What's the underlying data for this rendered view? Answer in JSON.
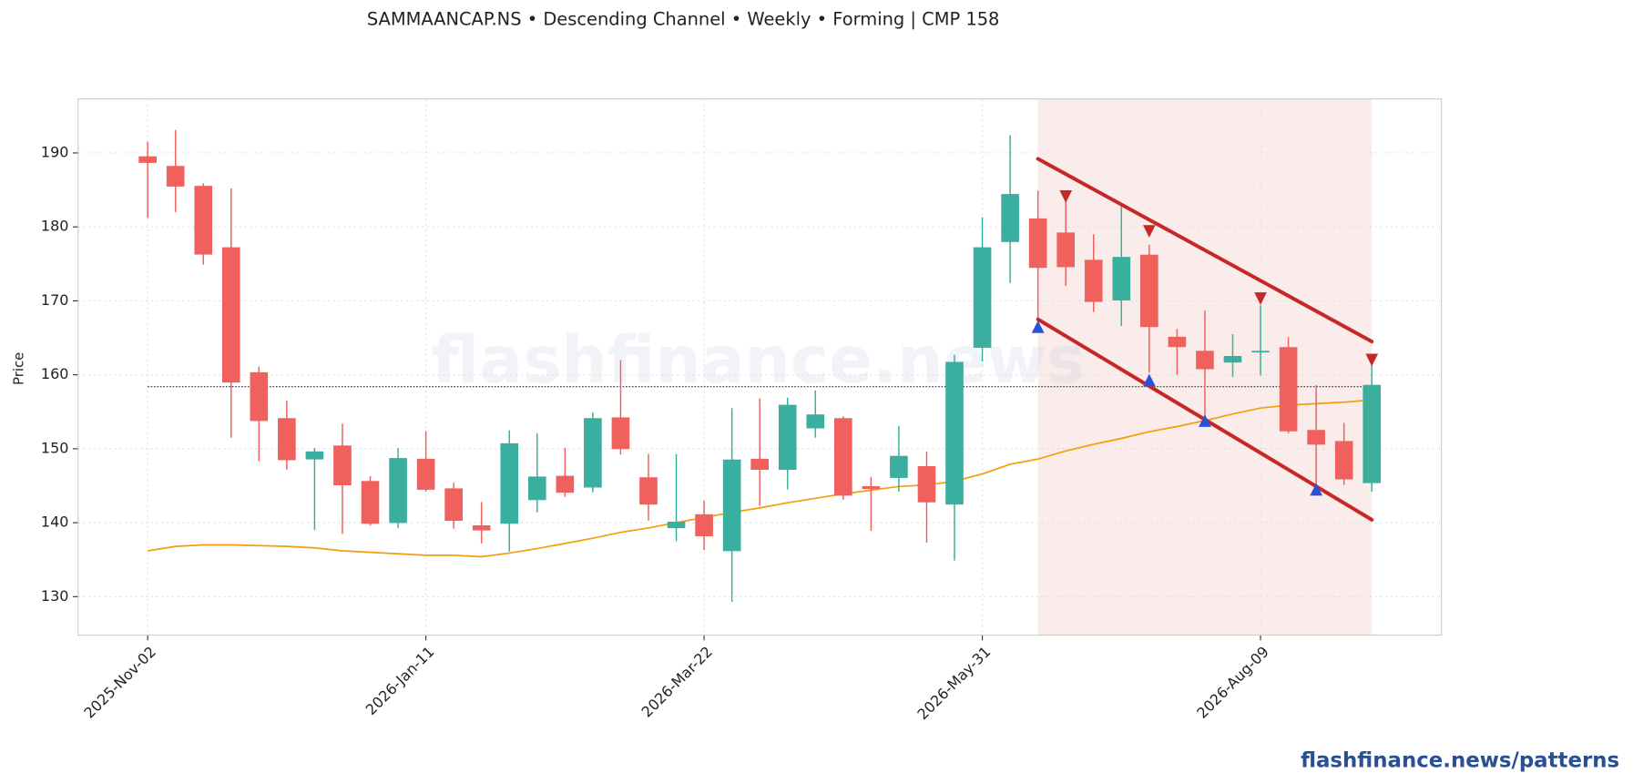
{
  "chart_data": {
    "type": "candlestick",
    "title": "SAMMAANCAP.NS  •  Descending Channel  •  Weekly  •  Forming  |  CMP 158",
    "ylabel": "Price",
    "watermark": "flashfinance.news",
    "footer": "flashfinance.news/patterns",
    "categories": [
      "2025-Nov-02",
      null,
      null,
      null,
      null,
      null,
      null,
      null,
      null,
      null,
      "2026-Jan-11",
      null,
      null,
      null,
      null,
      null,
      null,
      null,
      null,
      null,
      "2026-Mar-22",
      null,
      null,
      null,
      null,
      null,
      null,
      null,
      null,
      null,
      "2026-May-31",
      null,
      null,
      null,
      null,
      null,
      null,
      null,
      null,
      null,
      "2026-Aug-09",
      null,
      null,
      null,
      null
    ],
    "open": [
      189.5,
      188.2,
      185.5,
      177.2,
      160.3,
      154.1,
      148.6,
      150.4,
      145.6,
      140.0,
      148.6,
      144.6,
      139.6,
      139.9,
      143.1,
      146.3,
      144.8,
      154.2,
      146.1,
      139.3,
      141.1,
      136.2,
      148.6,
      147.2,
      152.8,
      154.1,
      144.9,
      146.1,
      147.6,
      142.5,
      163.7,
      178.0,
      181.1,
      179.2,
      175.5,
      170.1,
      176.2,
      165.1,
      163.2,
      161.7,
      163.1,
      163.7,
      152.5,
      151.0,
      145.4
    ],
    "high": [
      191.5,
      193.1,
      185.9,
      185.2,
      161.1,
      156.5,
      150.1,
      153.4,
      146.3,
      150.1,
      152.4,
      145.4,
      142.8,
      152.5,
      152.1,
      150.1,
      154.9,
      162.0,
      149.3,
      149.3,
      143.0,
      155.5,
      156.8,
      156.9,
      157.9,
      154.4,
      146.2,
      153.1,
      149.6,
      162.7,
      181.3,
      192.4,
      184.9,
      183.5,
      179.0,
      183.1,
      177.6,
      166.2,
      168.7,
      165.5,
      169.4,
      165.1,
      158.6,
      153.5,
      162.0
    ],
    "low": [
      181.2,
      182.0,
      174.9,
      151.5,
      148.3,
      147.2,
      139.0,
      138.5,
      139.6,
      139.3,
      144.2,
      139.2,
      137.2,
      136.1,
      141.4,
      143.5,
      144.1,
      149.2,
      140.3,
      137.5,
      136.3,
      129.3,
      142.3,
      144.5,
      151.5,
      143.1,
      138.9,
      144.2,
      137.3,
      134.9,
      161.8,
      172.4,
      166.5,
      172.0,
      168.5,
      166.6,
      160.3,
      160.0,
      153.7,
      159.7,
      159.9,
      152.1,
      145.1,
      145.1,
      144.2
    ],
    "close": [
      188.7,
      185.5,
      176.3,
      159.0,
      153.8,
      148.5,
      149.6,
      145.1,
      139.9,
      148.7,
      144.5,
      140.3,
      139.0,
      150.7,
      146.2,
      144.1,
      154.1,
      150.0,
      142.5,
      140.1,
      138.2,
      148.5,
      147.2,
      155.9,
      154.6,
      143.7,
      144.6,
      149.0,
      142.8,
      161.7,
      177.2,
      184.4,
      174.5,
      174.6,
      169.9,
      175.9,
      166.5,
      163.8,
      160.8,
      162.5,
      163.2,
      152.4,
      150.6,
      145.9,
      158.6
    ],
    "up_color": "#3aaf9f",
    "down_color": "#f0605d",
    "ma": {
      "color": "#f59e0b",
      "values": [
        136.2,
        136.8,
        137.0,
        137.0,
        136.9,
        136.8,
        136.6,
        136.2,
        136.0,
        135.8,
        135.6,
        135.6,
        135.4,
        135.9,
        136.5,
        137.2,
        137.9,
        138.7,
        139.3,
        140.0,
        140.7,
        141.4,
        142.0,
        142.7,
        143.3,
        143.9,
        144.4,
        144.9,
        145.1,
        145.6,
        146.6,
        147.9,
        148.6,
        149.7,
        150.6,
        151.4,
        152.3,
        153.0,
        153.8,
        154.7,
        155.5,
        155.9,
        156.1,
        156.3,
        156.6
      ]
    },
    "cmp_line": 158.4,
    "pattern": {
      "x": [
        32,
        44
      ],
      "upper": [
        189.2,
        164.5
      ],
      "lower": [
        167.5,
        140.4
      ],
      "color": "#c62828",
      "shade": "#f9eceb"
    },
    "resistance_touches": {
      "color": "#c62828",
      "x": [
        33,
        36,
        40,
        44
      ],
      "values": [
        184.1,
        179.4,
        170.3,
        162.0
      ]
    },
    "support_touches": {
      "color": "#2a52d8",
      "x": [
        32,
        36,
        38,
        42
      ],
      "values": [
        166.5,
        159.3,
        153.8,
        144.5
      ]
    },
    "ylim": [
      124.8,
      197.3
    ],
    "yticks": [
      130,
      140,
      150,
      160,
      170,
      180,
      190
    ],
    "grid": true
  }
}
